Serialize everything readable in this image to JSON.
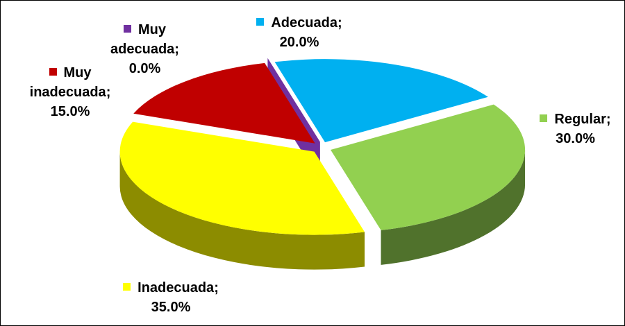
{
  "chart_data": {
    "type": "pie3d",
    "categories": [
      "Muy adecuada",
      "Adecuada",
      "Regular",
      "Inadecuada",
      "Muy inadecuada"
    ],
    "values": [
      0.0,
      20.0,
      30.0,
      35.0,
      15.0
    ],
    "value_labels": [
      "0.0%",
      "20.0%",
      "30.0%",
      "35.0%",
      "15.0%"
    ],
    "separator": ";",
    "colors": [
      "#7030a0",
      "#00b0f0",
      "#92d050",
      "#ffff00",
      "#c00000"
    ],
    "exploded": true
  }
}
